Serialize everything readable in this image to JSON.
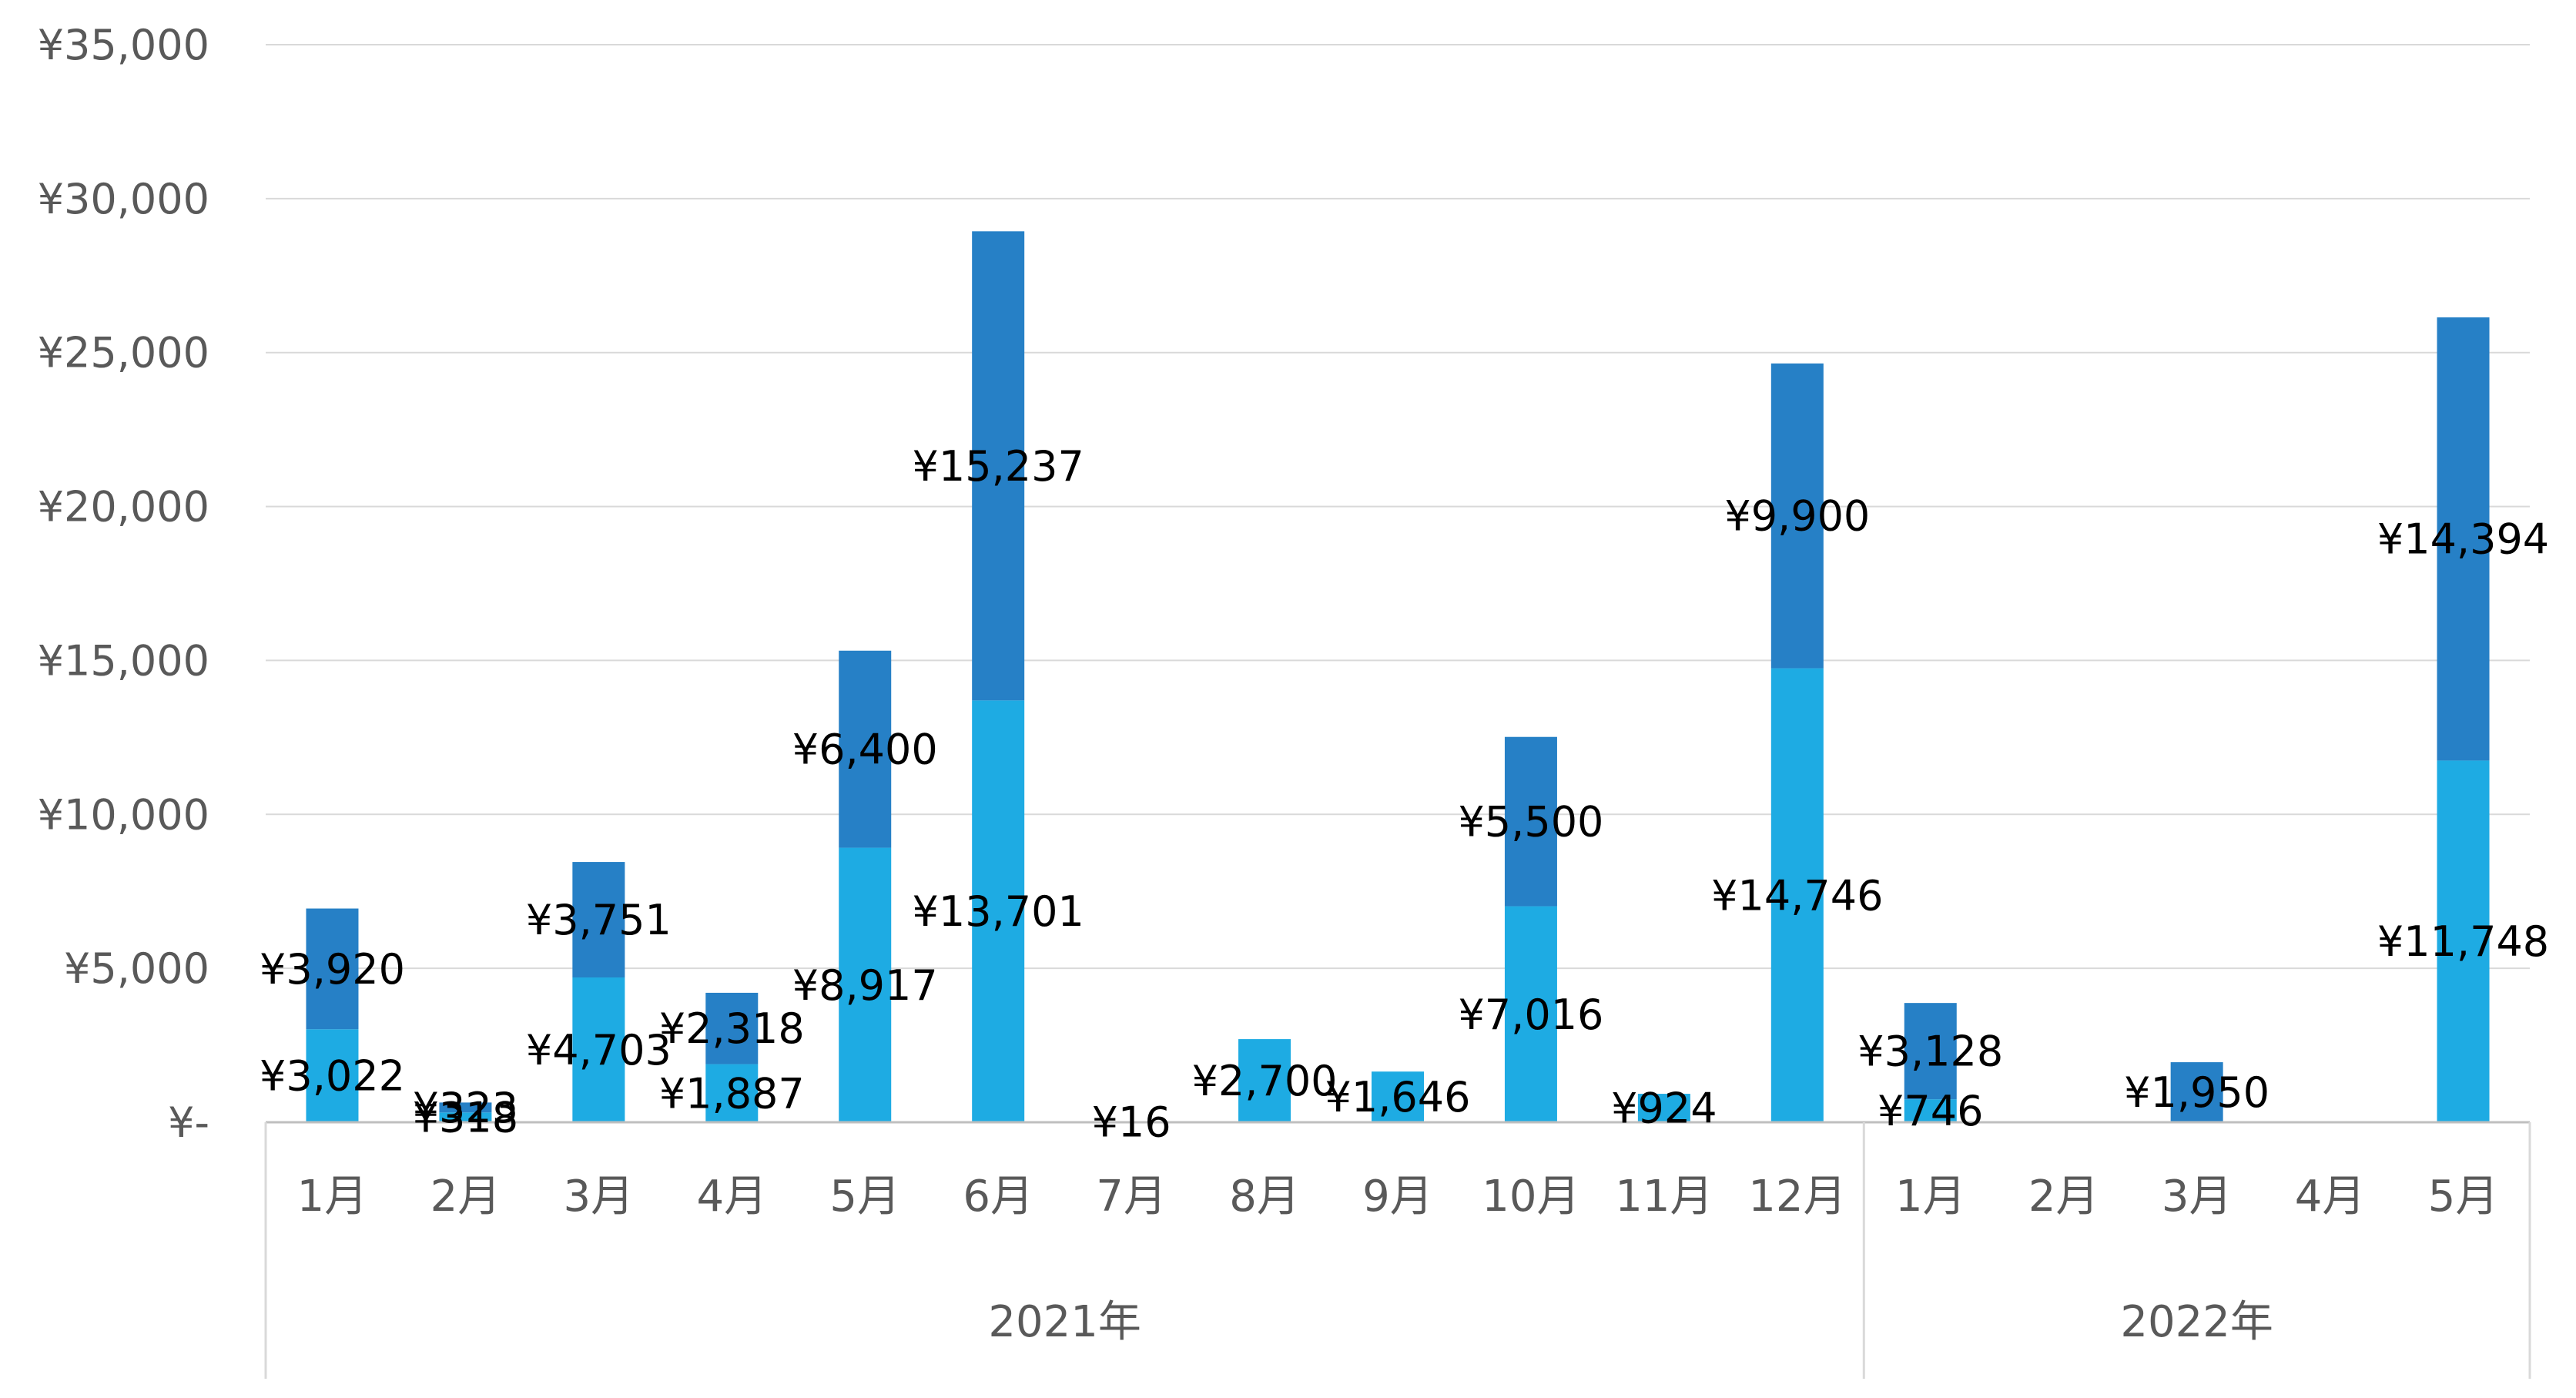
{
  "chart_data": {
    "type": "bar",
    "stacked": true,
    "ylim": [
      0,
      35000
    ],
    "y_ticks": [
      "¥-",
      "¥5,000",
      "¥10,000",
      "¥15,000",
      "¥20,000",
      "¥25,000",
      "¥30,000",
      "¥35,000"
    ],
    "y_tick_values": [
      0,
      5000,
      10000,
      15000,
      20000,
      25000,
      30000,
      35000
    ],
    "grid": true,
    "legend": "none",
    "categories": [
      "1月",
      "2月",
      "3月",
      "4月",
      "5月",
      "6月",
      "7月",
      "8月",
      "9月",
      "10月",
      "11月",
      "12月",
      "1月",
      "2月",
      "3月",
      "4月",
      "5月"
    ],
    "groups": [
      {
        "label": "2021年",
        "start": 0,
        "end": 11
      },
      {
        "label": "2022年",
        "start": 12,
        "end": 16
      }
    ],
    "series": [
      {
        "color": "#1EABE3",
        "values": [
          3022,
          318,
          4703,
          1887,
          8917,
          13701,
          16,
          2700,
          1646,
          7016,
          924,
          14746,
          746,
          0,
          0,
          0,
          11748
        ],
        "labels": [
          "¥3,022",
          "¥318",
          "¥4,703",
          "¥1,887",
          "¥8,917",
          "¥13,701",
          "¥16",
          "¥2,700",
          "¥1,646",
          "¥7,016",
          "¥924",
          "¥14,746",
          "¥746",
          "",
          "",
          "",
          "¥11,748"
        ]
      },
      {
        "color": "#2680C6",
        "values": [
          3920,
          323,
          3751,
          2318,
          6400,
          15237,
          0,
          0,
          0,
          5500,
          0,
          9900,
          3128,
          0,
          1950,
          0,
          14394
        ],
        "labels": [
          "¥3,920",
          "¥323",
          "¥3,751",
          "¥2,318",
          "¥6,400",
          "¥15,237",
          "",
          "",
          "",
          "¥5,500",
          "",
          "¥9,900",
          "¥3,128",
          "",
          "¥1,950",
          "",
          "¥14,394"
        ]
      }
    ]
  }
}
